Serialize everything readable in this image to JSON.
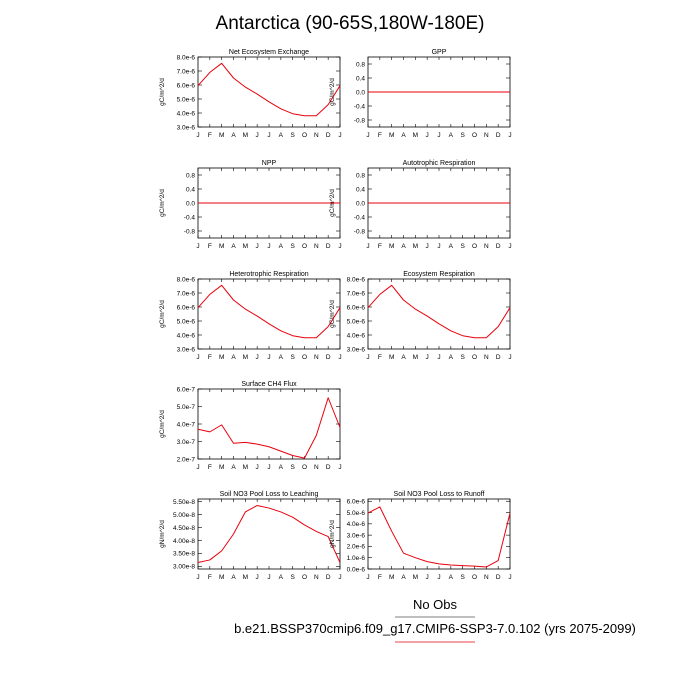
{
  "title": "Antarctica (90-65S,180W-180E)",
  "colors": {
    "series": "#e8000b",
    "axis": "#000000",
    "background": "#ffffff"
  },
  "legend": {
    "obs_label": "No Obs",
    "case_label": "b.e21.BSSP370cmip6.f09_g17.CMIP6-SSP3-7.0.102 (yrs 2075-2099)",
    "placement": "bottom-center"
  },
  "chart_data": [
    {
      "type": "line",
      "title": "Net Ecosystem Exchange",
      "ylabel": "gC/m^2/d",
      "categories": [
        "J",
        "F",
        "M",
        "A",
        "M",
        "J",
        "J",
        "A",
        "S",
        "O",
        "N",
        "D",
        "J"
      ],
      "yticks": [
        "3.0e-6",
        "4.0e-6",
        "5.0e-6",
        "6.0e-6",
        "7.0e-6",
        "8.0e-6"
      ],
      "ylim": [
        3e-06,
        8e-06
      ],
      "grid": false,
      "series": [
        {
          "values": [
            5.95e-06,
            6.9e-06,
            7.55e-06,
            6.5e-06,
            5.85e-06,
            5.35e-06,
            4.8e-06,
            4.3e-06,
            3.95e-06,
            3.8e-06,
            3.8e-06,
            4.6e-06,
            5.95e-06
          ]
        }
      ]
    },
    {
      "type": "line",
      "title": "GPP",
      "ylabel": "gC/m^2/d",
      "categories": [
        "J",
        "F",
        "M",
        "A",
        "M",
        "J",
        "J",
        "A",
        "S",
        "O",
        "N",
        "D",
        "J"
      ],
      "yticks": [
        "-0.8",
        "-0.4",
        "0.0",
        "0.4",
        "0.8"
      ],
      "ylim": [
        -1.0,
        1.0
      ],
      "grid": false,
      "series": [
        {
          "values": [
            0,
            0,
            0,
            0,
            0,
            0,
            0,
            0,
            0,
            0,
            0,
            0,
            0
          ]
        }
      ]
    },
    {
      "type": "line",
      "title": "NPP",
      "ylabel": "gC/m^2/d",
      "categories": [
        "J",
        "F",
        "M",
        "A",
        "M",
        "J",
        "J",
        "A",
        "S",
        "O",
        "N",
        "D",
        "J"
      ],
      "yticks": [
        "-0.8",
        "-0.4",
        "0.0",
        "0.4",
        "0.8"
      ],
      "ylim": [
        -1.0,
        1.0
      ],
      "grid": false,
      "series": [
        {
          "values": [
            0,
            0,
            0,
            0,
            0,
            0,
            0,
            0,
            0,
            0,
            0,
            0,
            0
          ]
        }
      ]
    },
    {
      "type": "line",
      "title": "Autotrophic Respiration",
      "ylabel": "gC/m^2/d",
      "categories": [
        "J",
        "F",
        "M",
        "A",
        "M",
        "J",
        "J",
        "A",
        "S",
        "O",
        "N",
        "D",
        "J"
      ],
      "yticks": [
        "-0.8",
        "-0.4",
        "0.0",
        "0.4",
        "0.8"
      ],
      "ylim": [
        -1.0,
        1.0
      ],
      "grid": false,
      "series": [
        {
          "values": [
            0,
            0,
            0,
            0,
            0,
            0,
            0,
            0,
            0,
            0,
            0,
            0,
            0
          ]
        }
      ]
    },
    {
      "type": "line",
      "title": "Heterotrophic Respiration",
      "ylabel": "gC/m^2/d",
      "categories": [
        "J",
        "F",
        "M",
        "A",
        "M",
        "J",
        "J",
        "A",
        "S",
        "O",
        "N",
        "D",
        "J"
      ],
      "yticks": [
        "3.0e-6",
        "4.0e-6",
        "5.0e-6",
        "6.0e-6",
        "7.0e-6",
        "8.0e-6"
      ],
      "ylim": [
        3e-06,
        8e-06
      ],
      "grid": false,
      "series": [
        {
          "values": [
            5.95e-06,
            6.9e-06,
            7.55e-06,
            6.5e-06,
            5.85e-06,
            5.35e-06,
            4.8e-06,
            4.3e-06,
            3.95e-06,
            3.8e-06,
            3.8e-06,
            4.6e-06,
            5.95e-06
          ]
        }
      ]
    },
    {
      "type": "line",
      "title": "Ecosystem Respiration",
      "ylabel": "gC/m^2/d",
      "categories": [
        "J",
        "F",
        "M",
        "A",
        "M",
        "J",
        "J",
        "A",
        "S",
        "O",
        "N",
        "D",
        "J"
      ],
      "yticks": [
        "3.0e-6",
        "4.0e-6",
        "5.0e-6",
        "6.0e-6",
        "7.0e-6",
        "8.0e-6"
      ],
      "ylim": [
        3e-06,
        8e-06
      ],
      "grid": false,
      "series": [
        {
          "values": [
            5.95e-06,
            6.9e-06,
            7.55e-06,
            6.5e-06,
            5.85e-06,
            5.35e-06,
            4.8e-06,
            4.3e-06,
            3.95e-06,
            3.8e-06,
            3.8e-06,
            4.6e-06,
            5.95e-06
          ]
        }
      ]
    },
    {
      "type": "line",
      "title": "Surface CH4 Flux",
      "ylabel": "gC/m^2/d",
      "categories": [
        "J",
        "F",
        "M",
        "A",
        "M",
        "J",
        "J",
        "A",
        "S",
        "O",
        "N",
        "D",
        "J"
      ],
      "yticks": [
        "2.0e-7",
        "3.0e-7",
        "4.0e-7",
        "5.0e-7",
        "6.0e-7"
      ],
      "ylim": [
        2e-07,
        6e-07
      ],
      "grid": false,
      "series": [
        {
          "values": [
            3.7e-07,
            3.55e-07,
            3.95e-07,
            2.9e-07,
            2.95e-07,
            2.85e-07,
            2.7e-07,
            2.45e-07,
            2.2e-07,
            2.05e-07,
            3.35e-07,
            5.5e-07,
            3.8e-07
          ]
        }
      ]
    },
    {
      "type": "line",
      "title": "Soil NO3 Pool Loss to Leaching",
      "ylabel": "gN/m^2/d",
      "categories": [
        "J",
        "F",
        "M",
        "A",
        "M",
        "J",
        "J",
        "A",
        "S",
        "O",
        "N",
        "D",
        "J"
      ],
      "yticks": [
        "3.00e-8",
        "3.50e-8",
        "4.00e-8",
        "4.50e-8",
        "5.00e-8",
        "5.50e-8"
      ],
      "ylim": [
        2.9e-08,
        5.6e-08
      ],
      "grid": false,
      "series": [
        {
          "values": [
            3.15e-08,
            3.25e-08,
            3.6e-08,
            4.25e-08,
            5.1e-08,
            5.35e-08,
            5.25e-08,
            5.1e-08,
            4.9e-08,
            4.6e-08,
            4.35e-08,
            4.15e-08,
            3.15e-08
          ]
        }
      ]
    },
    {
      "type": "line",
      "title": "Soil NO3 Pool Loss to Runoff",
      "ylabel": "gN/m^2/d",
      "categories": [
        "J",
        "F",
        "M",
        "A",
        "M",
        "J",
        "J",
        "A",
        "S",
        "O",
        "N",
        "D",
        "J"
      ],
      "yticks": [
        "0.0e-6",
        "1.0e-6",
        "2.0e-6",
        "3.0e-6",
        "4.0e-6",
        "5.0e-6",
        "6.0e-6"
      ],
      "ylim": [
        0.0,
        6.2e-06
      ],
      "grid": false,
      "series": [
        {
          "values": [
            4.95e-06,
            5.5e-06,
            3.35e-06,
            1.4e-06,
            1e-06,
            6.5e-07,
            4.5e-07,
            3.5e-07,
            3e-07,
            2.5e-07,
            1.8e-07,
            7.5e-07,
            4.95e-06
          ]
        }
      ]
    }
  ]
}
